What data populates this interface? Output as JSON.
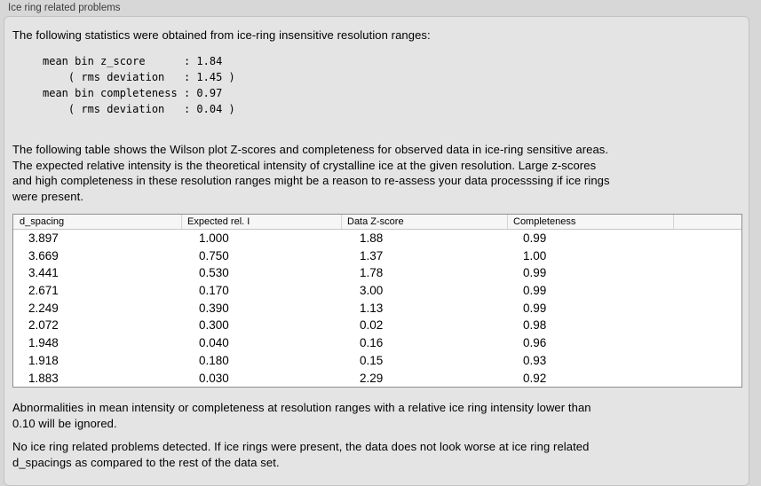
{
  "panel": {
    "title": "Ice ring related problems",
    "intro": "The following statistics were obtained from ice-ring insensitive resolution ranges:",
    "stats_block": "mean bin z_score      : 1.84\n    ( rms deviation   : 1.45 )\nmean bin completeness : 0.97\n    ( rms deviation   : 0.04 )",
    "stats": {
      "mean_bin_z_score": "1.84",
      "mean_bin_z_score_rms_deviation": "1.45",
      "mean_bin_completeness": "0.97",
      "mean_bin_completeness_rms_deviation": "0.04"
    },
    "table_description": "The following table shows the Wilson plot Z-scores and completeness for observed data in ice-ring sensitive areas.\nThe expected relative intensity is the theoretical intensity of crystalline ice at the given resolution. Large z-scores\nand high completeness in these resolution ranges might be a reason to re-assess your data processsing if ice rings\nwere present.",
    "ignore_note": "Abnormalities in mean intensity or completeness at resolution ranges with a relative ice ring intensity lower than\n0.10 will be ignored.",
    "conclusion": "No ice ring related problems detected. If ice rings were present, the data does not look worse at ice ring related\nd_spacings as compared to the rest of the data set."
  },
  "table": {
    "columns": [
      "d_spacing",
      "Expected rel. I",
      "Data Z-score",
      "Completeness",
      ""
    ],
    "rows": [
      [
        "3.897",
        "1.000",
        "1.88",
        "0.99"
      ],
      [
        "3.669",
        "0.750",
        "1.37",
        "1.00"
      ],
      [
        "3.441",
        "0.530",
        "1.78",
        "0.99"
      ],
      [
        "2.671",
        "0.170",
        "3.00",
        "0.99"
      ],
      [
        "2.249",
        "0.390",
        "1.13",
        "0.99"
      ],
      [
        "2.072",
        "0.300",
        "0.02",
        "0.98"
      ],
      [
        "1.948",
        "0.040",
        "0.16",
        "0.96"
      ],
      [
        "1.918",
        "0.180",
        "0.15",
        "0.93"
      ],
      [
        "1.883",
        "0.030",
        "2.29",
        "0.92"
      ]
    ]
  },
  "colors": {
    "window_background": "#d7d7d7",
    "panel_background": "#e4e4e4",
    "panel_border": "#c2c2c2",
    "table_background": "#ffffff",
    "table_border": "#8f8f8f",
    "table_header_background": "#f6f6f6",
    "text": "#000000",
    "label_text": "#3c3c3c"
  }
}
